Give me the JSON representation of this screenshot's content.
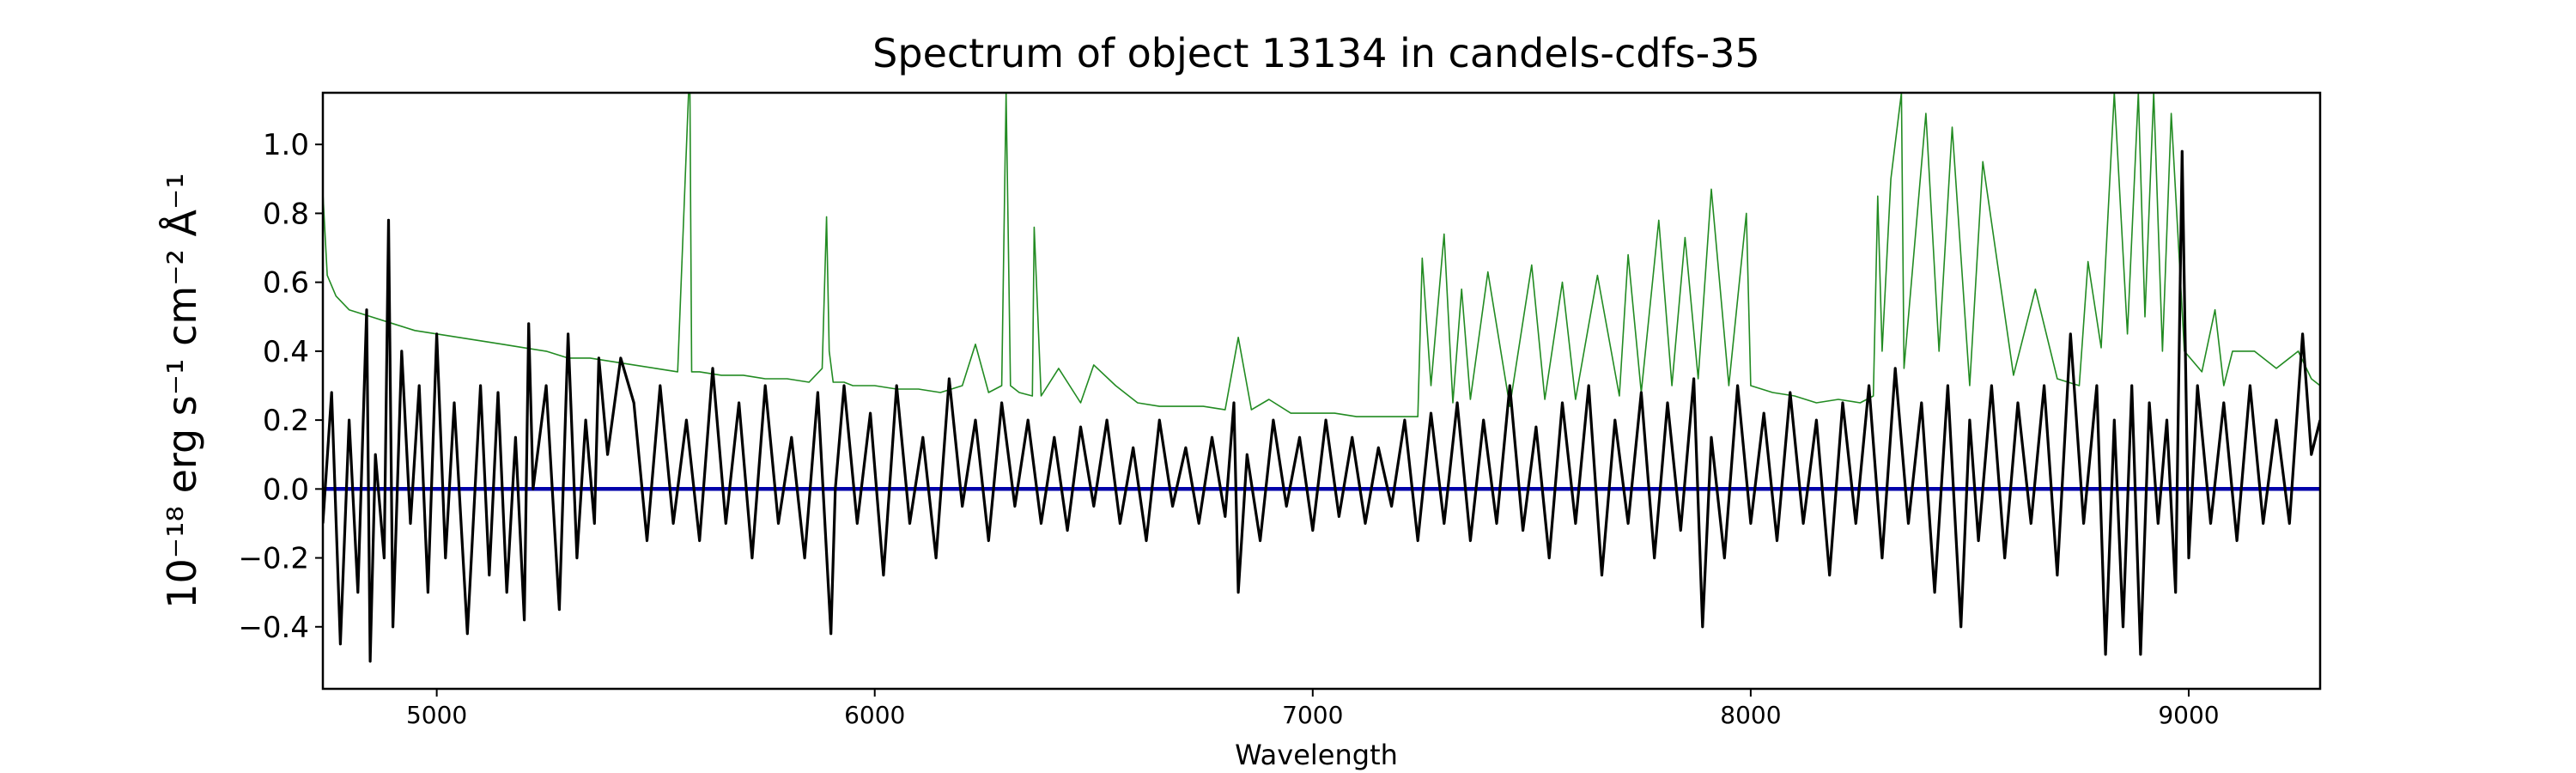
{
  "chart_data": {
    "type": "line",
    "title": "Spectrum of object 13134 in candels-cdfs-35",
    "xlabel": "Wavelength",
    "ylabel": "10⁻¹⁸ erg s⁻¹ cm⁻² Å⁻¹",
    "xlim": [
      4740,
      9300
    ],
    "ylim": [
      -0.58,
      1.15
    ],
    "xticks": [
      5000,
      6000,
      7000,
      8000,
      9000
    ],
    "yticks": [
      -0.4,
      -0.2,
      0.0,
      0.2,
      0.4,
      0.6,
      0.8,
      1.0
    ],
    "ytick_labels": [
      "−0.4",
      "−0.2",
      "0.0",
      "0.2",
      "0.4",
      "0.6",
      "0.8",
      "1.0"
    ],
    "grid": false,
    "legend": "none",
    "series": [
      {
        "color": "#228b22",
        "style": "thin sky/noise spectrum",
        "x": [
          4740,
          4750,
          4770,
          4800,
          4850,
          4900,
          4950,
          5000,
          5050,
          5100,
          5150,
          5200,
          5250,
          5300,
          5350,
          5400,
          5450,
          5500,
          5550,
          5575,
          5578,
          5582,
          5600,
          5650,
          5700,
          5750,
          5800,
          5850,
          5880,
          5890,
          5896,
          5905,
          5930,
          5950,
          6000,
          6050,
          6100,
          6150,
          6200,
          6230,
          6260,
          6290,
          6300,
          6310,
          6330,
          6360,
          6364,
          6380,
          6420,
          6470,
          6500,
          6550,
          6600,
          6650,
          6700,
          6750,
          6800,
          6830,
          6860,
          6900,
          6950,
          7000,
          7050,
          7100,
          7150,
          7200,
          7240,
          7250,
          7270,
          7300,
          7320,
          7340,
          7360,
          7400,
          7450,
          7500,
          7530,
          7570,
          7600,
          7650,
          7700,
          7720,
          7750,
          7790,
          7820,
          7850,
          7880,
          7910,
          7950,
          7990,
          8000,
          8050,
          8100,
          8150,
          8200,
          8250,
          8280,
          8290,
          8300,
          8320,
          8344,
          8350,
          8400,
          8430,
          8460,
          8500,
          8530,
          8600,
          8650,
          8700,
          8750,
          8770,
          8800,
          8830,
          8860,
          8885,
          8900,
          8920,
          8940,
          8960,
          8990,
          9030,
          9060,
          9080,
          9100,
          9150,
          9200,
          9250,
          9280,
          9300
        ],
        "y": [
          0.86,
          0.62,
          0.56,
          0.52,
          0.5,
          0.48,
          0.46,
          0.45,
          0.44,
          0.43,
          0.42,
          0.41,
          0.4,
          0.38,
          0.38,
          0.37,
          0.36,
          0.35,
          0.34,
          1.15,
          1.15,
          0.34,
          0.34,
          0.33,
          0.33,
          0.32,
          0.32,
          0.31,
          0.35,
          0.79,
          0.4,
          0.31,
          0.31,
          0.3,
          0.3,
          0.29,
          0.29,
          0.28,
          0.3,
          0.42,
          0.28,
          0.3,
          1.15,
          0.3,
          0.28,
          0.27,
          0.76,
          0.27,
          0.35,
          0.25,
          0.36,
          0.3,
          0.25,
          0.24,
          0.24,
          0.24,
          0.23,
          0.44,
          0.23,
          0.26,
          0.22,
          0.22,
          0.22,
          0.21,
          0.21,
          0.21,
          0.21,
          0.67,
          0.3,
          0.74,
          0.25,
          0.58,
          0.26,
          0.63,
          0.24,
          0.65,
          0.26,
          0.6,
          0.26,
          0.62,
          0.27,
          0.68,
          0.28,
          0.78,
          0.3,
          0.73,
          0.32,
          0.87,
          0.3,
          0.8,
          0.3,
          0.28,
          0.27,
          0.25,
          0.26,
          0.25,
          0.27,
          0.85,
          0.4,
          0.9,
          1.15,
          0.35,
          1.09,
          0.4,
          1.05,
          0.3,
          0.95,
          0.33,
          0.58,
          0.32,
          0.3,
          0.66,
          0.41,
          1.15,
          0.45,
          1.15,
          0.5,
          1.15,
          0.4,
          1.09,
          0.4,
          0.34,
          0.52,
          0.3,
          0.4,
          0.4,
          0.35,
          0.4,
          0.32,
          0.3
        ]
      },
      {
        "color": "#0000aa",
        "style": "zero line",
        "x": [
          4740,
          9300
        ],
        "y": [
          0.0,
          0.0
        ]
      },
      {
        "color": "#000000",
        "style": "object spectrum",
        "x": [
          4740,
          4760,
          4780,
          4800,
          4820,
          4840,
          4848,
          4860,
          4880,
          4890,
          4900,
          4920,
          4940,
          4960,
          4980,
          5000,
          5020,
          5040,
          5070,
          5100,
          5120,
          5140,
          5160,
          5180,
          5200,
          5210,
          5220,
          5250,
          5280,
          5300,
          5320,
          5340,
          5360,
          5370,
          5390,
          5420,
          5450,
          5480,
          5510,
          5540,
          5570,
          5600,
          5630,
          5660,
          5690,
          5720,
          5750,
          5780,
          5810,
          5840,
          5870,
          5900,
          5910,
          5930,
          5960,
          5990,
          6020,
          6050,
          6080,
          6110,
          6140,
          6170,
          6200,
          6230,
          6260,
          6290,
          6320,
          6350,
          6380,
          6410,
          6440,
          6470,
          6500,
          6530,
          6560,
          6590,
          6620,
          6650,
          6680,
          6710,
          6740,
          6770,
          6800,
          6820,
          6830,
          6850,
          6880,
          6910,
          6940,
          6970,
          7000,
          7030,
          7060,
          7090,
          7120,
          7150,
          7180,
          7210,
          7240,
          7270,
          7300,
          7330,
          7360,
          7390,
          7420,
          7450,
          7480,
          7510,
          7540,
          7570,
          7600,
          7630,
          7660,
          7690,
          7720,
          7750,
          7780,
          7810,
          7840,
          7870,
          7890,
          7910,
          7940,
          7970,
          8000,
          8030,
          8060,
          8090,
          8120,
          8150,
          8180,
          8210,
          8240,
          8270,
          8300,
          8330,
          8360,
          8390,
          8420,
          8450,
          8480,
          8500,
          8520,
          8550,
          8580,
          8610,
          8640,
          8670,
          8700,
          8730,
          8760,
          8790,
          8810,
          8830,
          8850,
          8870,
          8890,
          8910,
          8930,
          8950,
          8970,
          8985,
          9000,
          9020,
          9050,
          9080,
          9110,
          9140,
          9170,
          9200,
          9230,
          9260,
          9280,
          9300
        ],
        "y": [
          -0.1,
          0.28,
          -0.45,
          0.2,
          -0.3,
          0.52,
          -0.5,
          0.1,
          -0.2,
          0.78,
          -0.4,
          0.4,
          -0.1,
          0.3,
          -0.3,
          0.45,
          -0.2,
          0.25,
          -0.42,
          0.3,
          -0.25,
          0.28,
          -0.3,
          0.15,
          -0.38,
          0.48,
          0.0,
          0.3,
          -0.35,
          0.45,
          -0.2,
          0.2,
          -0.1,
          0.38,
          0.1,
          0.38,
          0.25,
          -0.15,
          0.3,
          -0.1,
          0.2,
          -0.15,
          0.35,
          -0.1,
          0.25,
          -0.2,
          0.3,
          -0.1,
          0.15,
          -0.2,
          0.28,
          -0.42,
          0.0,
          0.3,
          -0.1,
          0.22,
          -0.25,
          0.3,
          -0.1,
          0.15,
          -0.2,
          0.32,
          -0.05,
          0.2,
          -0.15,
          0.25,
          -0.05,
          0.2,
          -0.1,
          0.15,
          -0.12,
          0.18,
          -0.05,
          0.2,
          -0.1,
          0.12,
          -0.15,
          0.2,
          -0.05,
          0.12,
          -0.1,
          0.15,
          -0.08,
          0.25,
          -0.3,
          0.1,
          -0.15,
          0.2,
          -0.05,
          0.15,
          -0.12,
          0.2,
          -0.08,
          0.15,
          -0.1,
          0.12,
          -0.05,
          0.2,
          -0.15,
          0.22,
          -0.1,
          0.25,
          -0.15,
          0.2,
          -0.1,
          0.3,
          -0.12,
          0.18,
          -0.2,
          0.25,
          -0.1,
          0.3,
          -0.25,
          0.2,
          -0.1,
          0.28,
          -0.2,
          0.25,
          -0.12,
          0.32,
          -0.4,
          0.15,
          -0.2,
          0.3,
          -0.1,
          0.22,
          -0.15,
          0.28,
          -0.1,
          0.2,
          -0.25,
          0.25,
          -0.1,
          0.3,
          -0.2,
          0.35,
          -0.1,
          0.25,
          -0.3,
          0.3,
          -0.4,
          0.2,
          -0.15,
          0.3,
          -0.2,
          0.25,
          -0.1,
          0.3,
          -0.25,
          0.45,
          -0.1,
          0.3,
          -0.48,
          0.2,
          -0.4,
          0.3,
          -0.48,
          0.25,
          -0.1,
          0.2,
          -0.3,
          0.98,
          -0.2,
          0.3,
          -0.1,
          0.25,
          -0.15,
          0.3,
          -0.1,
          0.2,
          -0.1,
          0.45,
          0.1,
          0.2
        ]
      }
    ]
  }
}
